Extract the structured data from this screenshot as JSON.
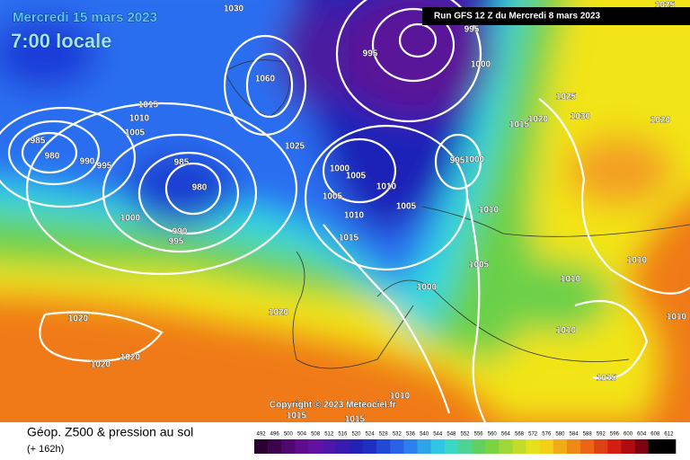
{
  "header": {
    "date": "Mercredi 15 mars 2023",
    "time": "7:00 locale",
    "run": "Run GFS 12 Z du Mercredi 8 mars 2023"
  },
  "copyright": "Copyright © 2023 Meteociel.fr",
  "footer": {
    "title": "Géop. Z500 & pression au sol",
    "subtitle": "(+ 162h)"
  },
  "scale": {
    "labels": [
      492,
      496,
      500,
      504,
      508,
      512,
      516,
      520,
      524,
      528,
      532,
      536,
      540,
      544,
      548,
      552,
      556,
      560,
      564,
      568,
      572,
      576,
      580,
      584,
      588,
      592,
      596,
      600,
      604,
      608,
      612
    ]
  },
  "isobars": [
    "1030",
    "1025",
    "1060",
    "1015",
    "1010",
    "1005",
    "985",
    "980",
    "990",
    "995",
    "985",
    "980",
    "1000",
    "990",
    "995",
    "1025",
    "1000",
    "1005",
    "1005",
    "1010",
    "1005",
    "1010",
    "1015",
    "995",
    "1000",
    "1000",
    "995",
    "995",
    "1025",
    "1020",
    "1030",
    "1015",
    "1020",
    "1010",
    "1005",
    "1000",
    "1020",
    "1020",
    "1020",
    "1020",
    "1010",
    "1010",
    "1010",
    "1010",
    "1015",
    "1010",
    "1015",
    "1015"
  ]
}
